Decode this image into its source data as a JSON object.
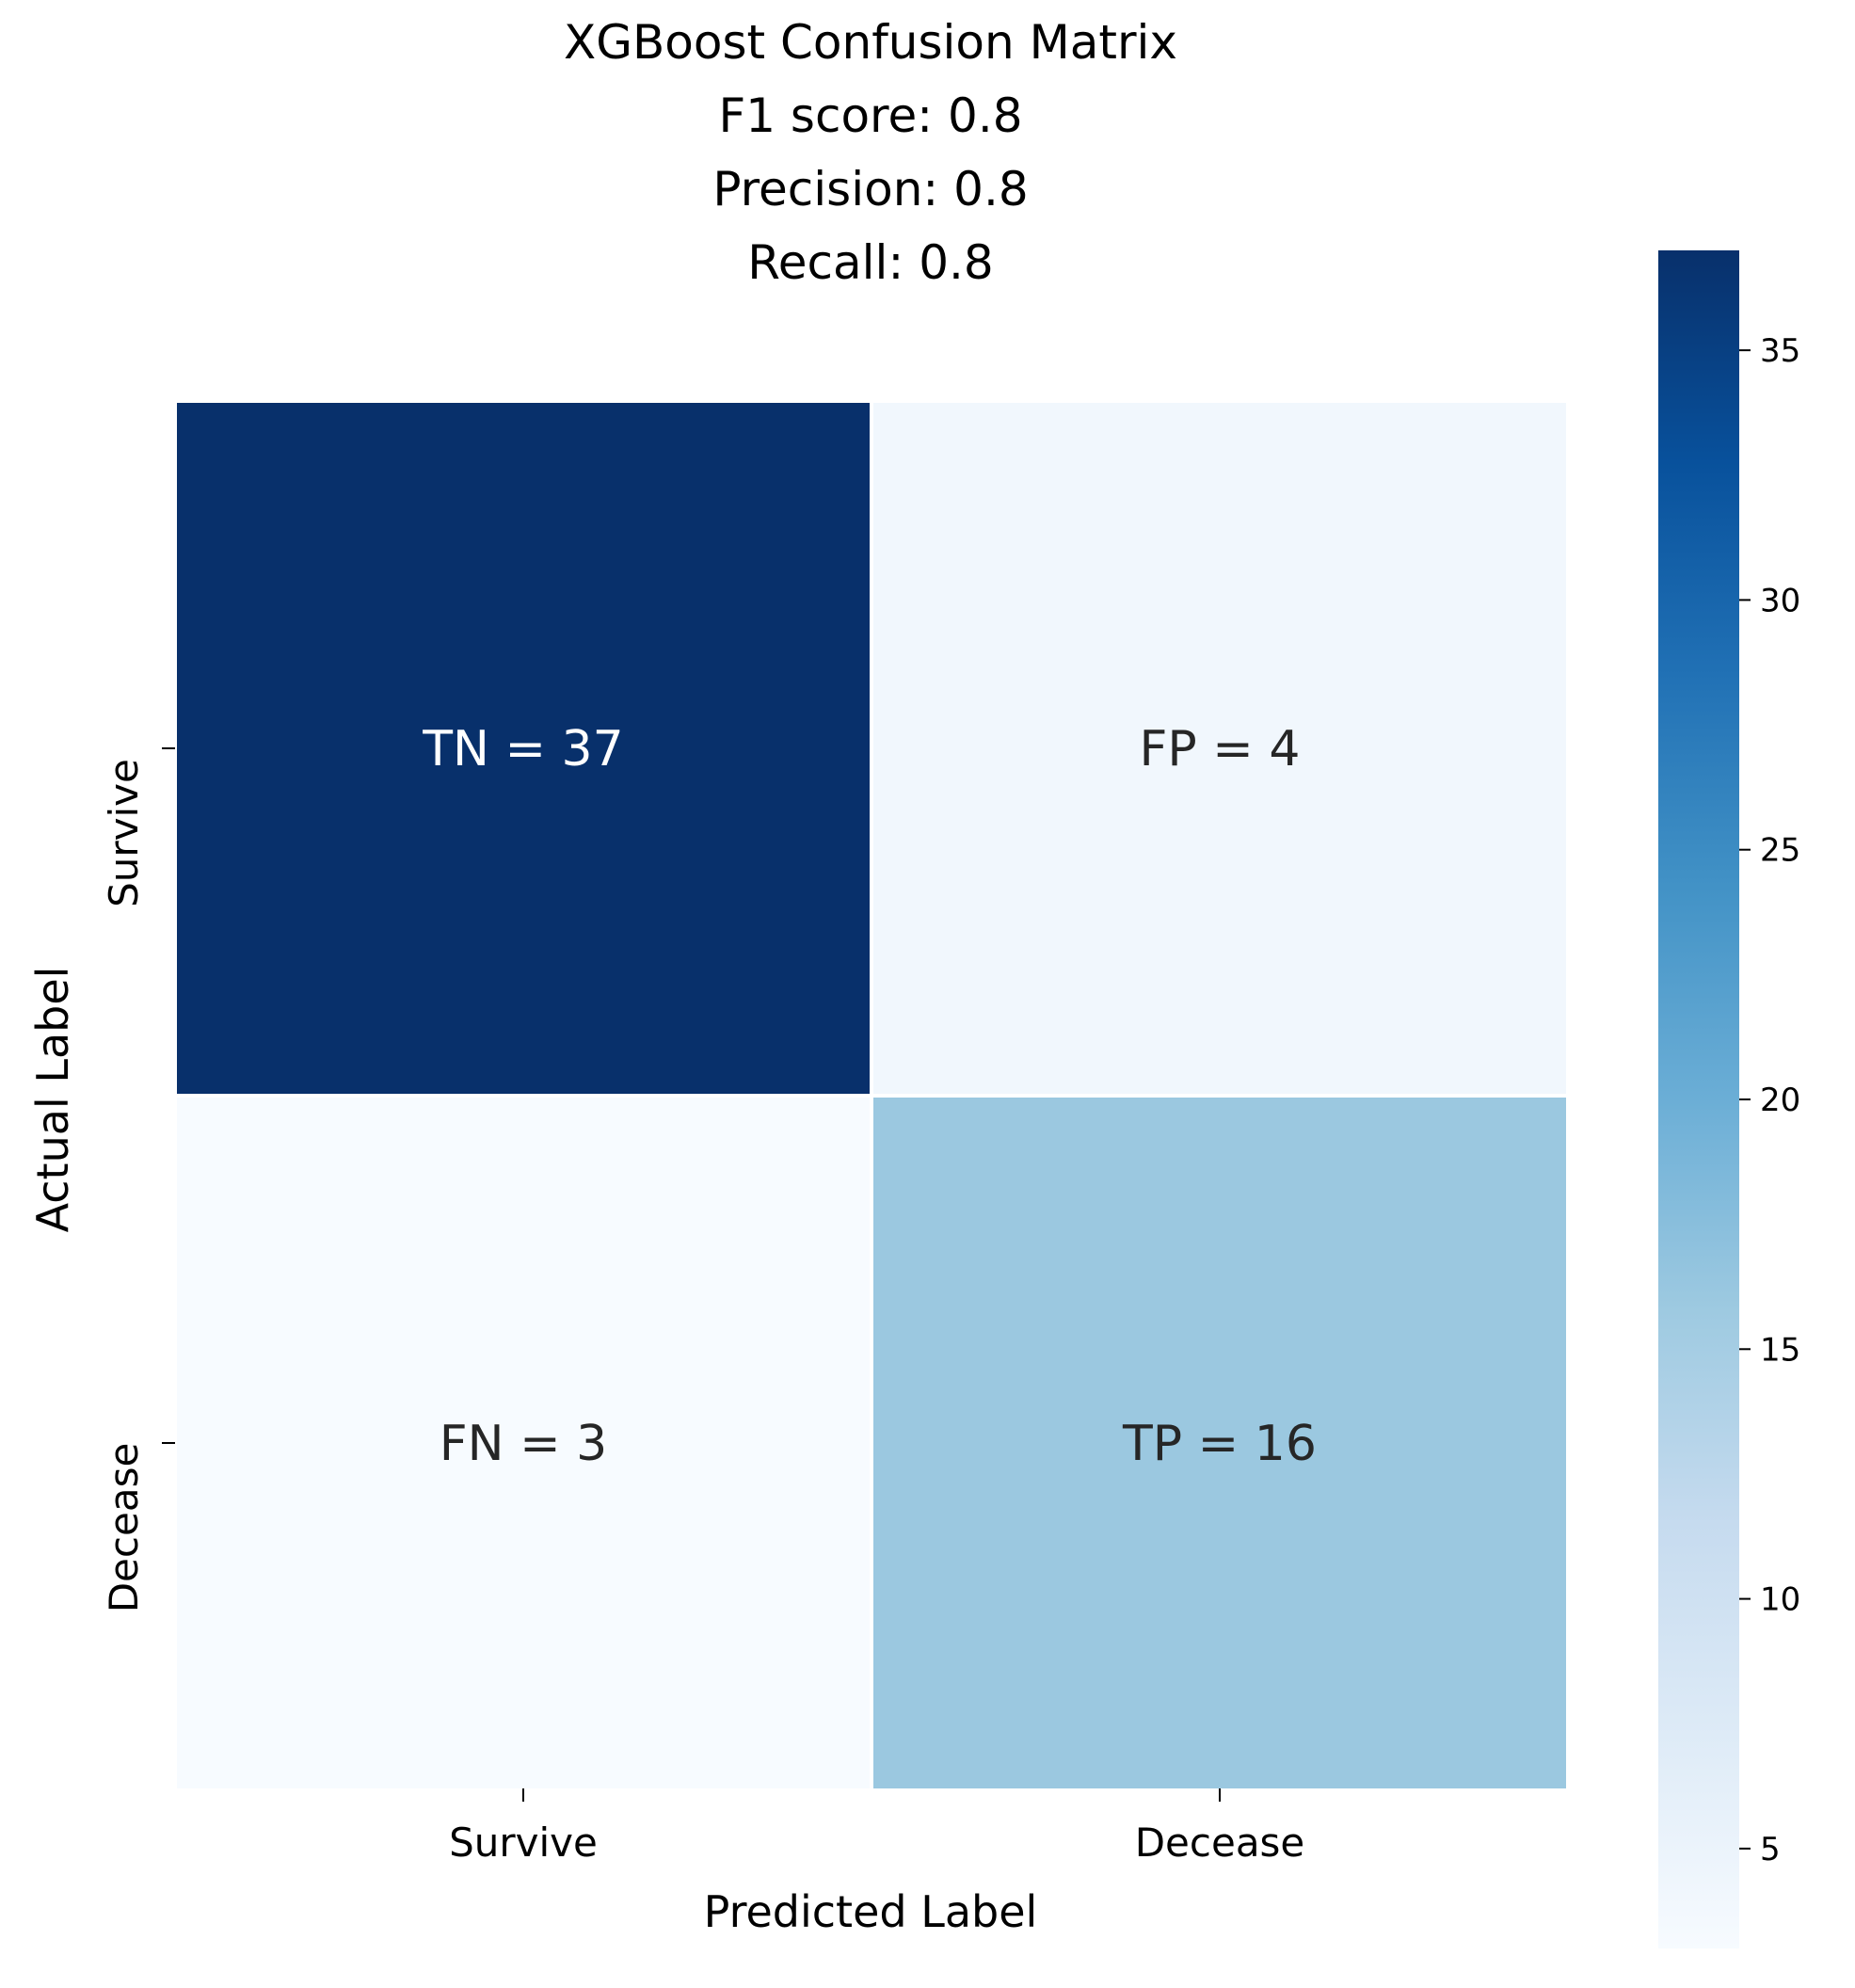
{
  "chart_data": {
    "type": "heatmap",
    "title_lines": [
      "XGBoost Confusion Matrix",
      "F1 score: 0.8",
      "Precision: 0.8",
      "Recall: 0.8"
    ],
    "xlabel": "Predicted Label",
    "ylabel": "Actual Label",
    "x_categories": [
      "Survive",
      "Decease"
    ],
    "y_categories": [
      "Survive",
      "Decease"
    ],
    "values": [
      [
        37,
        4
      ],
      [
        3,
        16
      ]
    ],
    "cell_labels": [
      [
        "TN = 37",
        "FP = 4"
      ],
      [
        "FN = 3",
        "TP = 16"
      ]
    ],
    "colormap": "Blues",
    "colorbar": {
      "range": [
        3,
        37
      ],
      "ticks": [
        5,
        10,
        15,
        20,
        25,
        30,
        35
      ]
    }
  }
}
